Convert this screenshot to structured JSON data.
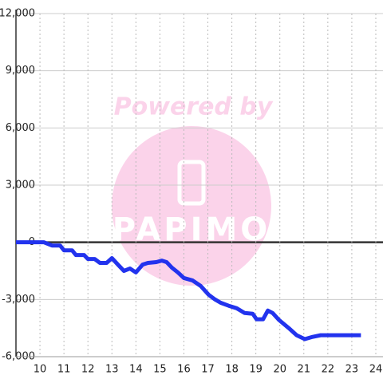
{
  "chart_data": {
    "type": "line",
    "watermark_top": "Powered by",
    "watermark_logo": "PAPIMO",
    "x": [
      9,
      10.17,
      10.5,
      10.84,
      11.0,
      11.34,
      11.5,
      11.84,
      12.0,
      12.28,
      12.5,
      12.78,
      13.0,
      13.25,
      13.5,
      13.75,
      14.0,
      14.28,
      14.5,
      14.85,
      15.08,
      15.28,
      15.5,
      15.75,
      16.0,
      16.36,
      16.7,
      17.03,
      17.3,
      17.53,
      17.87,
      18.2,
      18.53,
      18.87,
      19.03,
      19.3,
      19.5,
      19.7,
      19.97,
      20.37,
      20.7,
      21.04,
      21.37,
      21.7,
      23.38
    ],
    "series": [
      {
        "color": "#2233ee",
        "values": [
          0,
          0,
          -170,
          -170,
          -420,
          -420,
          -670,
          -670,
          -875,
          -875,
          -1080,
          -1080,
          -830,
          -1170,
          -1500,
          -1375,
          -1580,
          -1170,
          -1080,
          -1040,
          -960,
          -1040,
          -1330,
          -1580,
          -1875,
          -2000,
          -2290,
          -2750,
          -3000,
          -3170,
          -3330,
          -3460,
          -3710,
          -3750,
          -4040,
          -4040,
          -3580,
          -3710,
          -4080,
          -4500,
          -4875,
          -5080,
          -4960,
          -4875,
          -4875
        ]
      }
    ],
    "xlim": [
      9,
      24.3
    ],
    "xticks": [
      10,
      11,
      12,
      13,
      14,
      15,
      16,
      17,
      18,
      19,
      20,
      21,
      22,
      23,
      24
    ],
    "ylim": [
      -6000,
      12000
    ],
    "yticks": [
      {
        "value": 12000,
        "label": "12,000"
      },
      {
        "value": 9000,
        "label": "9,000"
      },
      {
        "value": 6000,
        "label": "6,000"
      },
      {
        "value": 3000,
        "label": "3,000"
      },
      0,
      {
        "value": -3000,
        "label": "-3,000"
      },
      {
        "value": -6000,
        "label": "-6,000"
      }
    ],
    "grid": true
  }
}
